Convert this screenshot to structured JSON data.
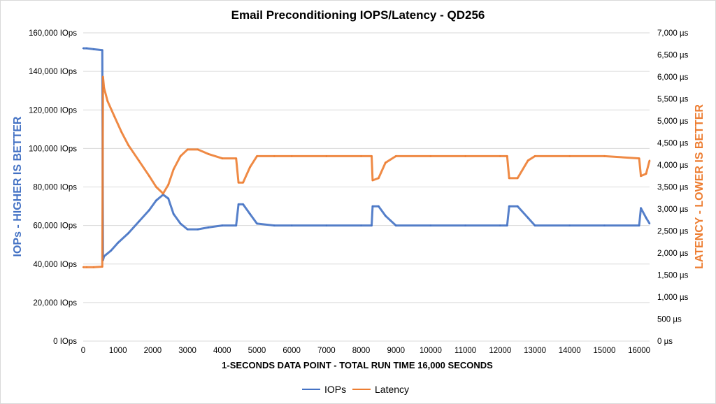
{
  "chart_data": {
    "type": "line",
    "title": "Email Preconditioning IOPS/Latency - QD256",
    "xlabel": "1-SECONDS DATA POINT - TOTAL RUN TIME 16,000 SECONDS",
    "ylabel_left": "IOPs - HIGHER IS BETTER",
    "ylabel_right": "LATENCY - LOWER IS BETTER",
    "xlim": [
      0,
      16300
    ],
    "ylim_left": [
      0,
      160000
    ],
    "ylim_right": [
      0,
      7000
    ],
    "x_ticks": [
      0,
      1000,
      2000,
      3000,
      4000,
      5000,
      6000,
      7000,
      8000,
      9000,
      10000,
      11000,
      12000,
      13000,
      14000,
      15000,
      16000
    ],
    "y_left_ticks": [
      0,
      20000,
      40000,
      60000,
      80000,
      100000,
      120000,
      140000,
      160000
    ],
    "y_left_tick_labels": [
      "0 IOps",
      "20,000 IOps",
      "40,000 IOps",
      "60,000 IOps",
      "80,000 IOps",
      "100,000 IOps",
      "120,000 IOps",
      "140,000 IOps",
      "160,000 IOps"
    ],
    "y_right_ticks": [
      0,
      500,
      1000,
      1500,
      2000,
      2500,
      3000,
      3500,
      4000,
      4500,
      5000,
      5500,
      6000,
      6500,
      7000
    ],
    "y_right_tick_labels": [
      "0 µs",
      "500 µs",
      "1,000 µs",
      "1,500 µs",
      "2,000 µs",
      "2,500 µs",
      "3,000 µs",
      "3,500 µs",
      "4,000 µs",
      "4,500 µs",
      "5,000 µs",
      "5,500 µs",
      "6,000 µs",
      "6,500 µs",
      "7,000 µs"
    ],
    "grid": true,
    "legend_position": "bottom",
    "series": [
      {
        "name": "IOPs",
        "axis": "left",
        "color": "#4472c4",
        "x": [
          0,
          100,
          300,
          550,
          570,
          600,
          800,
          1000,
          1300,
          1600,
          1900,
          2100,
          2300,
          2450,
          2600,
          2800,
          3000,
          3300,
          3600,
          4000,
          4400,
          4470,
          4600,
          4800,
          5000,
          5500,
          6000,
          7000,
          8000,
          8300,
          8330,
          8500,
          8700,
          9000,
          10000,
          11000,
          12000,
          12200,
          12260,
          12500,
          12800,
          13000,
          14000,
          15000,
          16000,
          16050,
          16200,
          16300
        ],
        "y": [
          152000,
          152000,
          151500,
          151000,
          42000,
          44000,
          47000,
          51000,
          56000,
          62000,
          68000,
          73000,
          76000,
          74000,
          66000,
          61000,
          58000,
          58000,
          59000,
          60000,
          60000,
          71000,
          71000,
          66000,
          61000,
          60000,
          60000,
          60000,
          60000,
          60000,
          70000,
          70000,
          65000,
          60000,
          60000,
          60000,
          60000,
          60000,
          70000,
          70000,
          64000,
          60000,
          60000,
          60000,
          60000,
          69000,
          64000,
          61000
        ]
      },
      {
        "name": "Latency",
        "axis": "right",
        "color": "#ed7d31",
        "x": [
          0,
          100,
          300,
          550,
          570,
          600,
          700,
          900,
          1100,
          1300,
          1600,
          1900,
          2100,
          2300,
          2450,
          2600,
          2800,
          3000,
          3300,
          3600,
          4000,
          4400,
          4470,
          4600,
          4800,
          5000,
          5500,
          6000,
          7000,
          8000,
          8300,
          8330,
          8500,
          8700,
          9000,
          10000,
          11000,
          12000,
          12200,
          12260,
          12500,
          12800,
          13000,
          14000,
          15000,
          16000,
          16050,
          16200,
          16300
        ],
        "y": [
          1680,
          1680,
          1680,
          1690,
          6000,
          5750,
          5450,
          5100,
          4750,
          4450,
          4100,
          3750,
          3500,
          3350,
          3550,
          3900,
          4200,
          4350,
          4350,
          4250,
          4150,
          4150,
          3600,
          3600,
          3950,
          4200,
          4200,
          4200,
          4200,
          4200,
          4200,
          3650,
          3700,
          4050,
          4200,
          4200,
          4200,
          4200,
          4200,
          3700,
          3700,
          4100,
          4200,
          4200,
          4200,
          4150,
          3750,
          3800,
          4100
        ]
      }
    ]
  }
}
